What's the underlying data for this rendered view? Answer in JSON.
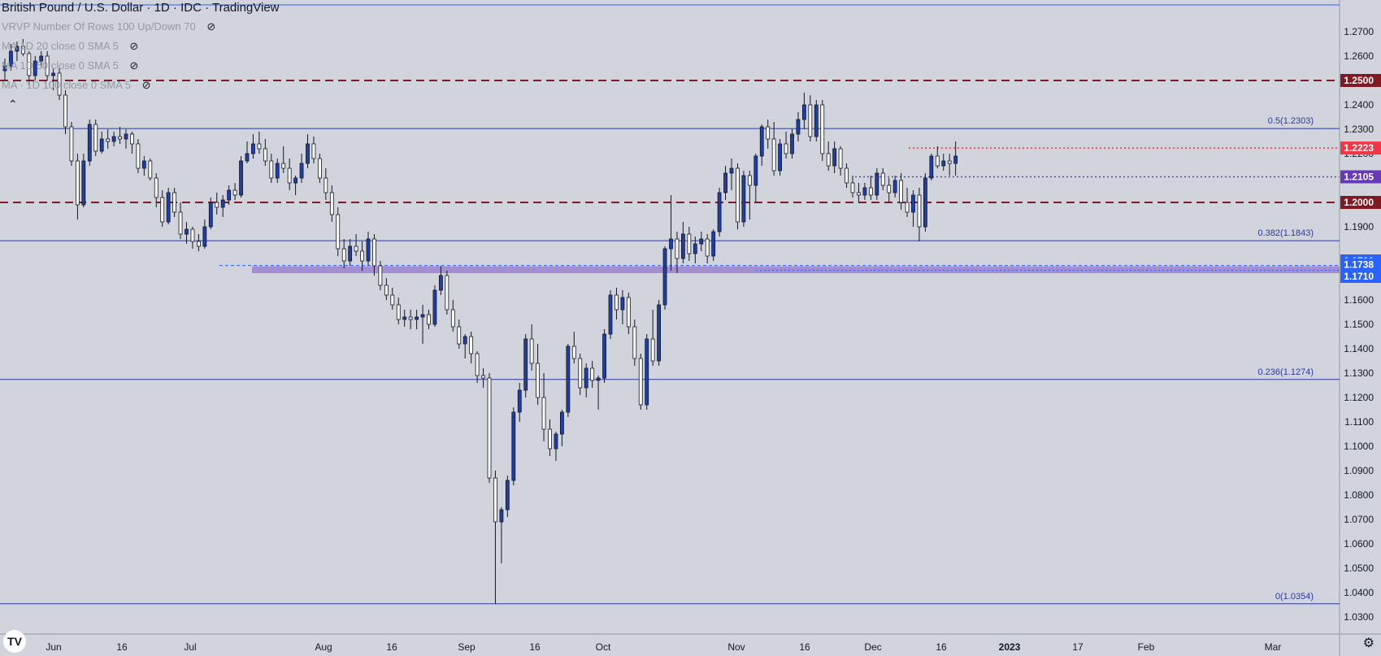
{
  "title": "British Pound / U.S. Dollar · 1D · IDC · TradingView",
  "indicators": [
    {
      "label": "VRVP Number Of Rows 100 Up/Down 70",
      "icon": "eye-crossed-icon"
    },
    {
      "label": "MA 1D 20 close 0 SMA 5",
      "icon": "eye-crossed-icon"
    },
    {
      "label": "MA 1D 50 close 0 SMA 5",
      "icon": "eye-crossed-icon"
    },
    {
      "label": "MA · 1D 100 close 0 SMA 5",
      "icon": "eye-crossed-icon"
    }
  ],
  "chart_data": {
    "type": "candlestick",
    "instrument": "British Pound / U.S. Dollar",
    "timeframe": "1D",
    "source": "IDC",
    "y_range": [
      1.023,
      1.283
    ],
    "y_ticks": [
      1.27,
      1.26,
      1.24,
      1.23,
      1.22,
      1.19,
      1.16,
      1.15,
      1.14,
      1.13,
      1.12,
      1.11,
      1.1,
      1.09,
      1.08,
      1.07,
      1.06,
      1.05,
      1.04,
      1.03
    ],
    "x_labels": [
      "Jun",
      "16",
      "Jul",
      "Aug",
      "16",
      "Sep",
      "16",
      "Oct",
      "Nov",
      "16",
      "Dec",
      "16",
      "2023",
      "17",
      "Feb",
      "Mar"
    ],
    "fib_levels": [
      {
        "label": "0.5(1.2303)",
        "value": 1.2303
      },
      {
        "label": "0.382(1.1843)",
        "value": 1.1843
      },
      {
        "label": "0.236(1.1274)",
        "value": 1.1274
      },
      {
        "label": "0(1.0354)",
        "value": 1.0354
      }
    ],
    "price_labels": [
      {
        "label": "1.2500",
        "value": 1.25,
        "color": "#801922"
      },
      {
        "label": "1.2223",
        "value": 1.2223,
        "color": "#f23645"
      },
      {
        "label": "1.2105",
        "value": 1.2105,
        "color": "#673ab7"
      },
      {
        "label": "1.2000",
        "value": 1.2,
        "color": "#801922"
      },
      {
        "label": "1.1760",
        "value": 1.176,
        "color": "#2962ff"
      },
      {
        "label": "1.1738",
        "value": 1.1738,
        "color": "#2962ff"
      },
      {
        "label": "1.1710",
        "value": 1.171,
        "color": "#2962ff"
      }
    ],
    "top_line": 1.281,
    "zone": [
      1.171,
      1.1738
    ],
    "candles": [
      [
        1.254,
        1.259,
        1.25,
        1.256
      ],
      [
        1.256,
        1.265,
        1.254,
        1.262
      ],
      [
        1.262,
        1.266,
        1.258,
        1.264
      ],
      [
        1.264,
        1.267,
        1.26,
        1.261
      ],
      [
        1.261,
        1.262,
        1.248,
        1.252
      ],
      [
        1.252,
        1.26,
        1.25,
        1.258
      ],
      [
        1.258,
        1.262,
        1.255,
        1.26
      ],
      [
        1.26,
        1.262,
        1.25,
        1.252
      ],
      [
        1.252,
        1.255,
        1.246,
        1.253
      ],
      [
        1.253,
        1.255,
        1.242,
        1.244
      ],
      [
        1.244,
        1.246,
        1.228,
        1.231
      ],
      [
        1.231,
        1.233,
        1.215,
        1.217
      ],
      [
        1.217,
        1.22,
        1.193,
        1.199
      ],
      [
        1.199,
        1.22,
        1.198,
        1.217
      ],
      [
        1.217,
        1.234,
        1.215,
        1.232
      ],
      [
        1.232,
        1.234,
        1.219,
        1.221
      ],
      [
        1.221,
        1.229,
        1.22,
        1.226
      ],
      [
        1.226,
        1.23,
        1.222,
        1.225
      ],
      [
        1.225,
        1.229,
        1.223,
        1.227
      ],
      [
        1.227,
        1.231,
        1.224,
        1.226
      ],
      [
        1.226,
        1.23,
        1.222,
        1.228
      ],
      [
        1.228,
        1.229,
        1.22,
        1.224
      ],
      [
        1.224,
        1.226,
        1.212,
        1.214
      ],
      [
        1.214,
        1.219,
        1.211,
        1.217
      ],
      [
        1.217,
        1.218,
        1.209,
        1.21
      ],
      [
        1.21,
        1.212,
        1.198,
        1.202
      ],
      [
        1.202,
        1.205,
        1.19,
        1.192
      ],
      [
        1.192,
        1.206,
        1.191,
        1.204
      ],
      [
        1.204,
        1.206,
        1.194,
        1.196
      ],
      [
        1.196,
        1.2,
        1.185,
        1.187
      ],
      [
        1.187,
        1.192,
        1.183,
        1.189
      ],
      [
        1.189,
        1.19,
        1.181,
        1.184
      ],
      [
        1.184,
        1.187,
        1.18,
        1.182
      ],
      [
        1.182,
        1.193,
        1.181,
        1.19
      ],
      [
        1.19,
        1.202,
        1.189,
        1.2
      ],
      [
        1.2,
        1.204,
        1.195,
        1.198
      ],
      [
        1.198,
        1.203,
        1.194,
        1.201
      ],
      [
        1.201,
        1.207,
        1.199,
        1.205
      ],
      [
        1.205,
        1.208,
        1.201,
        1.203
      ],
      [
        1.203,
        1.219,
        1.202,
        1.217
      ],
      [
        1.217,
        1.225,
        1.216,
        1.22
      ],
      [
        1.22,
        1.228,
        1.218,
        1.224
      ],
      [
        1.224,
        1.229,
        1.22,
        1.222
      ],
      [
        1.222,
        1.226,
        1.215,
        1.217
      ],
      [
        1.217,
        1.22,
        1.208,
        1.21
      ],
      [
        1.21,
        1.218,
        1.208,
        1.216
      ],
      [
        1.216,
        1.223,
        1.212,
        1.214
      ],
      [
        1.214,
        1.218,
        1.205,
        1.208
      ],
      [
        1.208,
        1.211,
        1.203,
        1.21
      ],
      [
        1.21,
        1.22,
        1.208,
        1.216
      ],
      [
        1.216,
        1.228,
        1.214,
        1.224
      ],
      [
        1.224,
        1.227,
        1.216,
        1.218
      ],
      [
        1.218,
        1.22,
        1.208,
        1.21
      ],
      [
        1.21,
        1.214,
        1.201,
        1.204
      ],
      [
        1.204,
        1.207,
        1.192,
        1.195
      ],
      [
        1.195,
        1.198,
        1.178,
        1.181
      ],
      [
        1.181,
        1.185,
        1.173,
        1.176
      ],
      [
        1.176,
        1.185,
        1.174,
        1.182
      ],
      [
        1.182,
        1.187,
        1.178,
        1.18
      ],
      [
        1.18,
        1.184,
        1.172,
        1.176
      ],
      [
        1.176,
        1.188,
        1.174,
        1.185
      ],
      [
        1.185,
        1.187,
        1.17,
        1.174
      ],
      [
        1.174,
        1.176,
        1.164,
        1.166
      ],
      [
        1.166,
        1.169,
        1.16,
        1.162
      ],
      [
        1.162,
        1.165,
        1.156,
        1.158
      ],
      [
        1.158,
        1.161,
        1.15,
        1.152
      ],
      [
        1.152,
        1.156,
        1.149,
        1.153
      ],
      [
        1.153,
        1.156,
        1.148,
        1.152
      ],
      [
        1.152,
        1.156,
        1.148,
        1.153
      ],
      [
        1.153,
        1.158,
        1.142,
        1.154
      ],
      [
        1.154,
        1.156,
        1.148,
        1.15
      ],
      [
        1.15,
        1.166,
        1.149,
        1.164
      ],
      [
        1.164,
        1.174,
        1.162,
        1.17
      ],
      [
        1.17,
        1.172,
        1.154,
        1.156
      ],
      [
        1.156,
        1.16,
        1.147,
        1.149
      ],
      [
        1.149,
        1.152,
        1.14,
        1.142
      ],
      [
        1.142,
        1.146,
        1.136,
        1.145
      ],
      [
        1.145,
        1.147,
        1.134,
        1.138
      ],
      [
        1.138,
        1.139,
        1.126,
        1.129
      ],
      [
        1.129,
        1.132,
        1.124,
        1.128
      ],
      [
        1.128,
        1.13,
        1.085,
        1.087
      ],
      [
        1.087,
        1.09,
        1.0354,
        1.069
      ],
      [
        1.069,
        1.075,
        1.052,
        1.074
      ],
      [
        1.074,
        1.088,
        1.071,
        1.086
      ],
      [
        1.086,
        1.116,
        1.084,
        1.114
      ],
      [
        1.114,
        1.126,
        1.11,
        1.123
      ],
      [
        1.123,
        1.146,
        1.12,
        1.144
      ],
      [
        1.144,
        1.15,
        1.131,
        1.134
      ],
      [
        1.134,
        1.142,
        1.117,
        1.12
      ],
      [
        1.12,
        1.13,
        1.102,
        1.107
      ],
      [
        1.107,
        1.111,
        1.096,
        1.099
      ],
      [
        1.099,
        1.106,
        1.094,
        1.105
      ],
      [
        1.105,
        1.115,
        1.1,
        1.114
      ],
      [
        1.114,
        1.142,
        1.112,
        1.141
      ],
      [
        1.141,
        1.147,
        1.134,
        1.136
      ],
      [
        1.136,
        1.138,
        1.121,
        1.124
      ],
      [
        1.124,
        1.134,
        1.12,
        1.132
      ],
      [
        1.132,
        1.135,
        1.124,
        1.127
      ],
      [
        1.127,
        1.129,
        1.115,
        1.128
      ],
      [
        1.128,
        1.148,
        1.126,
        1.146
      ],
      [
        1.146,
        1.164,
        1.144,
        1.162
      ],
      [
        1.162,
        1.165,
        1.152,
        1.156
      ],
      [
        1.156,
        1.164,
        1.15,
        1.161
      ],
      [
        1.161,
        1.163,
        1.146,
        1.149
      ],
      [
        1.149,
        1.152,
        1.133,
        1.136
      ],
      [
        1.136,
        1.138,
        1.115,
        1.117
      ],
      [
        1.117,
        1.146,
        1.115,
        1.144
      ],
      [
        1.144,
        1.156,
        1.133,
        1.135
      ],
      [
        1.135,
        1.16,
        1.133,
        1.158
      ],
      [
        1.158,
        1.182,
        1.156,
        1.181
      ],
      [
        1.181,
        1.203,
        1.172,
        1.185
      ],
      [
        1.185,
        1.188,
        1.171,
        1.177
      ],
      [
        1.177,
        1.192,
        1.175,
        1.187
      ],
      [
        1.187,
        1.19,
        1.176,
        1.179
      ],
      [
        1.179,
        1.186,
        1.175,
        1.183
      ],
      [
        1.183,
        1.188,
        1.18,
        1.185
      ],
      [
        1.185,
        1.187,
        1.175,
        1.178
      ],
      [
        1.178,
        1.189,
        1.176,
        1.188
      ],
      [
        1.188,
        1.206,
        1.186,
        1.204
      ],
      [
        1.204,
        1.215,
        1.201,
        1.212
      ],
      [
        1.212,
        1.218,
        1.205,
        1.214
      ],
      [
        1.214,
        1.216,
        1.189,
        1.192
      ],
      [
        1.192,
        1.213,
        1.19,
        1.211
      ],
      [
        1.211,
        1.213,
        1.193,
        1.207
      ],
      [
        1.207,
        1.22,
        1.2,
        1.219
      ],
      [
        1.219,
        1.232,
        1.215,
        1.231
      ],
      [
        1.231,
        1.234,
        1.222,
        1.226
      ],
      [
        1.226,
        1.233,
        1.211,
        1.213
      ],
      [
        1.213,
        1.226,
        1.211,
        1.224
      ],
      [
        1.224,
        1.229,
        1.218,
        1.22
      ],
      [
        1.22,
        1.23,
        1.218,
        1.228
      ],
      [
        1.228,
        1.237,
        1.225,
        1.234
      ],
      [
        1.234,
        1.245,
        1.23,
        1.24
      ],
      [
        1.24,
        1.244,
        1.225,
        1.227
      ],
      [
        1.227,
        1.242,
        1.225,
        1.24
      ],
      [
        1.24,
        1.242,
        1.217,
        1.22
      ],
      [
        1.22,
        1.225,
        1.213,
        1.215
      ],
      [
        1.215,
        1.225,
        1.212,
        1.222
      ],
      [
        1.222,
        1.223,
        1.211,
        1.214
      ],
      [
        1.214,
        1.216,
        1.206,
        1.208
      ],
      [
        1.208,
        1.211,
        1.202,
        1.204
      ],
      [
        1.204,
        1.208,
        1.2,
        1.203
      ],
      [
        1.203,
        1.208,
        1.201,
        1.206
      ],
      [
        1.206,
        1.211,
        1.201,
        1.203
      ],
      [
        1.203,
        1.214,
        1.201,
        1.212
      ],
      [
        1.212,
        1.214,
        1.205,
        1.207
      ],
      [
        1.207,
        1.21,
        1.2,
        1.204
      ],
      [
        1.204,
        1.211,
        1.202,
        1.209
      ],
      [
        1.209,
        1.212,
        1.197,
        1.2
      ],
      [
        1.2,
        1.206,
        1.194,
        1.196
      ],
      [
        1.196,
        1.205,
        1.19,
        1.203
      ],
      [
        1.203,
        1.206,
        1.184,
        1.19
      ],
      [
        1.19,
        1.212,
        1.188,
        1.21
      ],
      [
        1.21,
        1.22,
        1.209,
        1.219
      ],
      [
        1.219,
        1.223,
        1.214,
        1.215
      ],
      [
        1.215,
        1.22,
        1.213,
        1.217
      ],
      [
        1.217,
        1.22,
        1.211,
        1.216
      ],
      [
        1.216,
        1.225,
        1.211,
        1.219
      ]
    ]
  }
}
